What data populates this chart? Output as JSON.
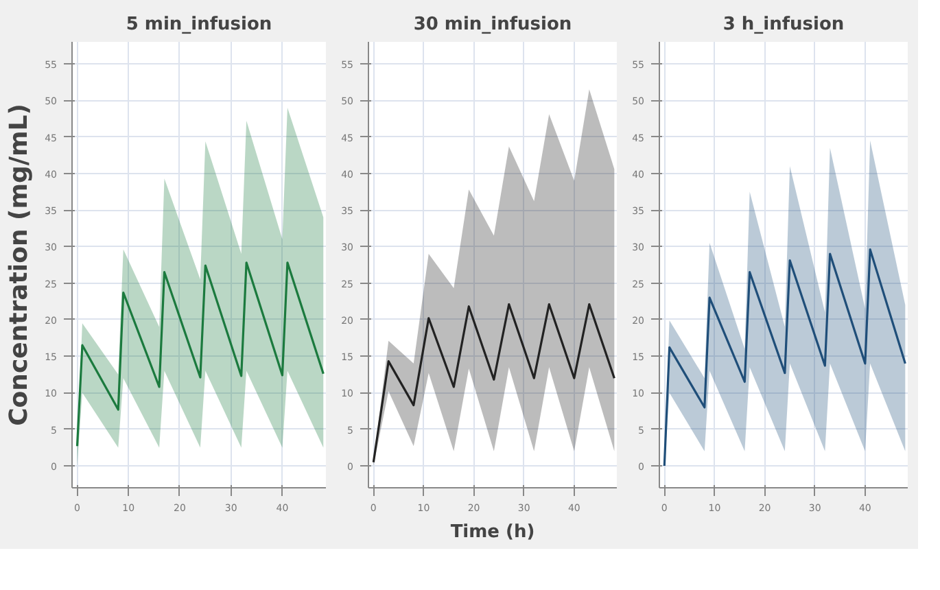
{
  "chart_data": [
    {
      "type": "line",
      "title": "5 min_infusion",
      "ylabel": "Concentration (mg/mL)",
      "xlim": [
        -1,
        48.5
      ],
      "ylim": [
        -3,
        58
      ],
      "xticks": [
        0,
        10,
        20,
        30,
        40
      ],
      "yticks": [
        0,
        5,
        10,
        15,
        20,
        25,
        30,
        35,
        40,
        45,
        50,
        55
      ],
      "grid": true,
      "series": [
        {
          "color": "#1b7a3e",
          "x": [
            0,
            1,
            8,
            9,
            16,
            17,
            24,
            25,
            32,
            33,
            40,
            41,
            48
          ],
          "values": [
            2.7,
            16.5,
            7.7,
            23.7,
            10.8,
            26.5,
            12.1,
            27.4,
            12.3,
            27.8,
            12.4,
            27.8,
            12.6
          ],
          "lower": [
            0,
            10,
            2.5,
            12,
            2.5,
            13,
            2.5,
            13,
            2.5,
            13,
            2.5,
            13,
            2.5
          ],
          "upper": [
            2.7,
            19.5,
            12.5,
            29.6,
            19,
            39.3,
            25.5,
            44.4,
            29,
            47.2,
            31,
            49,
            34
          ]
        }
      ]
    },
    {
      "type": "line",
      "title": "30 min_infusion",
      "xlabel": "Time (h)",
      "xlim": [
        -1,
        48.5
      ],
      "ylim": [
        -3,
        58
      ],
      "xticks": [
        0,
        10,
        20,
        30,
        40
      ],
      "yticks": [
        0,
        5,
        10,
        15,
        20,
        25,
        30,
        35,
        40,
        45,
        50,
        55
      ],
      "grid": true,
      "series": [
        {
          "color": "#222222",
          "x": [
            0,
            3,
            8,
            11,
            16,
            19,
            24,
            27,
            32,
            35,
            40,
            43,
            48
          ],
          "values": [
            0.5,
            14.3,
            8.3,
            20.2,
            10.8,
            21.8,
            11.8,
            22.1,
            12,
            22.1,
            12,
            22.1,
            12
          ],
          "lower": [
            0,
            10.2,
            2.7,
            12.7,
            2,
            13.3,
            2,
            13.5,
            2,
            13.5,
            2,
            13.5,
            2
          ],
          "upper": [
            0.5,
            17.1,
            14,
            29,
            24.3,
            37.8,
            31.5,
            43.7,
            36.2,
            48.1,
            39,
            51.5,
            40.6
          ]
        }
      ]
    },
    {
      "type": "line",
      "title": "3 h_infusion",
      "xlim": [
        -1,
        48.5
      ],
      "ylim": [
        -3,
        58
      ],
      "xticks": [
        0,
        10,
        20,
        30,
        40
      ],
      "yticks": [
        0,
        5,
        10,
        15,
        20,
        25,
        30,
        35,
        40,
        45,
        50,
        55
      ],
      "grid": true,
      "series": [
        {
          "color": "#1f4e79",
          "x": [
            0,
            1,
            8,
            9,
            16,
            17,
            24,
            25,
            32,
            33,
            40,
            41,
            48
          ],
          "values": [
            0,
            16.2,
            8,
            23,
            11.5,
            26.5,
            12.7,
            28.1,
            13.7,
            29,
            14,
            29.6,
            14
          ],
          "lower": [
            0,
            10,
            2,
            13,
            2,
            13.5,
            2,
            14,
            2,
            14,
            2,
            14,
            2
          ],
          "upper": [
            0,
            19.9,
            12,
            30.5,
            16,
            37.5,
            19,
            41,
            21,
            43.5,
            21.5,
            44.5,
            22
          ]
        }
      ]
    }
  ]
}
